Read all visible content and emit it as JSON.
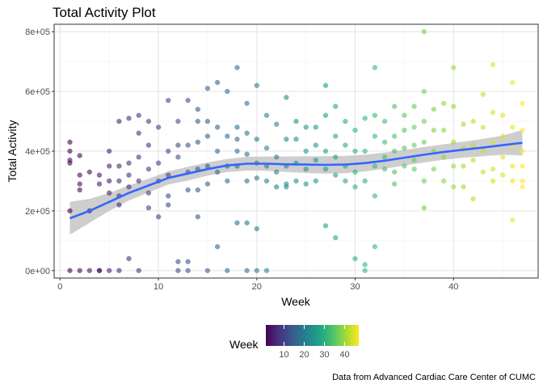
{
  "chart_data": {
    "type": "scatter",
    "title": "Total Activity Plot",
    "xlabel": "Week",
    "ylabel": "Total Activity",
    "caption": "Data from Advanced Cardiac Care Center of CUMC",
    "xlim": [
      -0.6,
      48.6
    ],
    "ylim": [
      -25000,
      825000
    ],
    "x_ticks": [
      0,
      10,
      20,
      30,
      40
    ],
    "y_ticks": [
      0,
      200000,
      400000,
      600000,
      800000
    ],
    "y_tick_labels": [
      "0e+00",
      "2e+05",
      "4e+05",
      "6e+05",
      "8e+05"
    ],
    "grid": true,
    "legend": {
      "title": "Week",
      "position": "bottom",
      "ticks": [
        10,
        20,
        30,
        40
      ],
      "range": [
        1,
        47
      ],
      "colormap": "viridis"
    },
    "colors": {
      "smooth_line": "#3366ff",
      "ribbon": "#bdbdbd",
      "grid_major": "#e5e5e5",
      "grid_minor": "#f3f3f3",
      "panel_border": "#333333",
      "viridis": [
        "#440154",
        "#482878",
        "#3e4989",
        "#31688e",
        "#26828e",
        "#1f9e89",
        "#35b779",
        "#6ece58",
        "#b5de2b",
        "#fde725"
      ]
    },
    "smooth": {
      "x": [
        1,
        3,
        5,
        7,
        9,
        11,
        13,
        15,
        17,
        19,
        21,
        23,
        25,
        27,
        29,
        31,
        33,
        35,
        37,
        39,
        41,
        43,
        45,
        47
      ],
      "y": [
        175000,
        200000,
        230000,
        260000,
        285000,
        310000,
        325000,
        340000,
        352000,
        358000,
        358000,
        356000,
        355000,
        354000,
        355000,
        360000,
        368000,
        378000,
        388000,
        397000,
        405000,
        412000,
        420000,
        428000
      ],
      "lower": [
        120000,
        160000,
        200000,
        235000,
        262000,
        288000,
        302000,
        318000,
        330000,
        335000,
        334000,
        330000,
        327000,
        325000,
        326000,
        332000,
        341000,
        352000,
        362000,
        371000,
        378000,
        383000,
        388000,
        385000
      ],
      "upper": [
        230000,
        240000,
        260000,
        285000,
        308000,
        332000,
        348000,
        362000,
        374000,
        381000,
        382000,
        382000,
        383000,
        383000,
        384000,
        388000,
        395000,
        404000,
        414000,
        423000,
        432000,
        441000,
        452000,
        471000
      ]
    },
    "points": [
      [
        1,
        430000
      ],
      [
        1,
        400000
      ],
      [
        1,
        370000
      ],
      [
        1,
        360000
      ],
      [
        1,
        200000
      ],
      [
        1,
        0
      ],
      [
        2,
        385000
      ],
      [
        2,
        320000
      ],
      [
        2,
        290000
      ],
      [
        2,
        270000
      ],
      [
        2,
        0
      ],
      [
        3,
        330000
      ],
      [
        3,
        200000
      ],
      [
        3,
        0
      ],
      [
        4,
        320000
      ],
      [
        4,
        290000
      ],
      [
        4,
        0
      ],
      [
        4,
        0
      ],
      [
        5,
        400000
      ],
      [
        5,
        350000
      ],
      [
        5,
        300000
      ],
      [
        5,
        260000
      ],
      [
        5,
        0
      ],
      [
        6,
        500000
      ],
      [
        6,
        350000
      ],
      [
        6,
        300000
      ],
      [
        6,
        250000
      ],
      [
        6,
        220000
      ],
      [
        6,
        0
      ],
      [
        7,
        510000
      ],
      [
        7,
        360000
      ],
      [
        7,
        320000
      ],
      [
        7,
        280000
      ],
      [
        7,
        40000
      ],
      [
        8,
        520000
      ],
      [
        8,
        460000
      ],
      [
        8,
        380000
      ],
      [
        8,
        300000
      ],
      [
        8,
        0
      ],
      [
        9,
        500000
      ],
      [
        9,
        420000
      ],
      [
        9,
        340000
      ],
      [
        9,
        260000
      ],
      [
        9,
        210000
      ],
      [
        10,
        480000
      ],
      [
        10,
        360000
      ],
      [
        10,
        300000
      ],
      [
        10,
        180000
      ],
      [
        11,
        570000
      ],
      [
        11,
        400000
      ],
      [
        11,
        320000
      ],
      [
        11,
        250000
      ],
      [
        11,
        220000
      ],
      [
        12,
        500000
      ],
      [
        12,
        420000
      ],
      [
        12,
        380000
      ],
      [
        12,
        30000
      ],
      [
        12,
        0
      ],
      [
        13,
        570000
      ],
      [
        13,
        420000
      ],
      [
        13,
        330000
      ],
      [
        13,
        270000
      ],
      [
        13,
        30000
      ],
      [
        13,
        0
      ],
      [
        14,
        540000
      ],
      [
        14,
        500000
      ],
      [
        14,
        430000
      ],
      [
        14,
        340000
      ],
      [
        14,
        270000
      ],
      [
        14,
        180000
      ],
      [
        15,
        610000
      ],
      [
        15,
        500000
      ],
      [
        15,
        450000
      ],
      [
        15,
        350000
      ],
      [
        15,
        290000
      ],
      [
        15,
        0
      ],
      [
        16,
        630000
      ],
      [
        16,
        480000
      ],
      [
        16,
        400000
      ],
      [
        16,
        330000
      ],
      [
        16,
        80000
      ],
      [
        17,
        600000
      ],
      [
        17,
        450000
      ],
      [
        17,
        350000
      ],
      [
        17,
        300000
      ],
      [
        17,
        0
      ],
      [
        18,
        680000
      ],
      [
        18,
        480000
      ],
      [
        18,
        440000
      ],
      [
        18,
        400000
      ],
      [
        18,
        350000
      ],
      [
        18,
        160000
      ],
      [
        19,
        560000
      ],
      [
        19,
        460000
      ],
      [
        19,
        390000
      ],
      [
        19,
        300000
      ],
      [
        19,
        160000
      ],
      [
        19,
        0
      ],
      [
        20,
        620000
      ],
      [
        20,
        440000
      ],
      [
        20,
        360000
      ],
      [
        20,
        310000
      ],
      [
        20,
        140000
      ],
      [
        20,
        0
      ],
      [
        21,
        520000
      ],
      [
        21,
        410000
      ],
      [
        21,
        350000
      ],
      [
        21,
        300000
      ],
      [
        21,
        0
      ],
      [
        22,
        490000
      ],
      [
        22,
        380000
      ],
      [
        22,
        330000
      ],
      [
        22,
        280000
      ],
      [
        23,
        580000
      ],
      [
        23,
        440000
      ],
      [
        23,
        350000
      ],
      [
        23,
        290000
      ],
      [
        23,
        280000
      ],
      [
        24,
        500000
      ],
      [
        24,
        440000
      ],
      [
        24,
        360000
      ],
      [
        24,
        300000
      ],
      [
        25,
        480000
      ],
      [
        25,
        400000
      ],
      [
        25,
        340000
      ],
      [
        25,
        290000
      ],
      [
        26,
        480000
      ],
      [
        26,
        420000
      ],
      [
        26,
        370000
      ],
      [
        26,
        300000
      ],
      [
        27,
        620000
      ],
      [
        27,
        520000
      ],
      [
        27,
        400000
      ],
      [
        27,
        340000
      ],
      [
        27,
        150000
      ],
      [
        28,
        550000
      ],
      [
        28,
        450000
      ],
      [
        28,
        380000
      ],
      [
        28,
        320000
      ],
      [
        28,
        110000
      ],
      [
        29,
        500000
      ],
      [
        29,
        420000
      ],
      [
        29,
        350000
      ],
      [
        29,
        300000
      ],
      [
        30,
        470000
      ],
      [
        30,
        400000
      ],
      [
        30,
        330000
      ],
      [
        30,
        280000
      ],
      [
        30,
        40000
      ],
      [
        31,
        510000
      ],
      [
        31,
        400000
      ],
      [
        31,
        300000
      ],
      [
        31,
        20000
      ],
      [
        31,
        0
      ],
      [
        32,
        680000
      ],
      [
        32,
        520000
      ],
      [
        32,
        450000
      ],
      [
        32,
        350000
      ],
      [
        32,
        250000
      ],
      [
        32,
        80000
      ],
      [
        33,
        500000
      ],
      [
        33,
        430000
      ],
      [
        33,
        380000
      ],
      [
        33,
        340000
      ],
      [
        34,
        550000
      ],
      [
        34,
        450000
      ],
      [
        34,
        400000
      ],
      [
        34,
        330000
      ],
      [
        34,
        290000
      ],
      [
        35,
        520000
      ],
      [
        35,
        470000
      ],
      [
        35,
        410000
      ],
      [
        35,
        350000
      ],
      [
        36,
        550000
      ],
      [
        36,
        480000
      ],
      [
        36,
        420000
      ],
      [
        36,
        370000
      ],
      [
        36,
        340000
      ],
      [
        37,
        800000
      ],
      [
        37,
        600000
      ],
      [
        37,
        500000
      ],
      [
        37,
        430000
      ],
      [
        37,
        300000
      ],
      [
        37,
        210000
      ],
      [
        38,
        540000
      ],
      [
        38,
        470000
      ],
      [
        38,
        400000
      ],
      [
        38,
        340000
      ],
      [
        39,
        560000
      ],
      [
        39,
        470000
      ],
      [
        39,
        380000
      ],
      [
        39,
        300000
      ],
      [
        40,
        680000
      ],
      [
        40,
        550000
      ],
      [
        40,
        430000
      ],
      [
        40,
        350000
      ],
      [
        40,
        280000
      ],
      [
        41,
        490000
      ],
      [
        41,
        410000
      ],
      [
        41,
        350000
      ],
      [
        41,
        280000
      ],
      [
        42,
        500000
      ],
      [
        42,
        420000
      ],
      [
        42,
        370000
      ],
      [
        42,
        240000
      ],
      [
        43,
        590000
      ],
      [
        43,
        480000
      ],
      [
        43,
        400000
      ],
      [
        43,
        330000
      ],
      [
        44,
        690000
      ],
      [
        44,
        530000
      ],
      [
        44,
        430000
      ],
      [
        44,
        340000
      ],
      [
        44,
        300000
      ],
      [
        45,
        520000
      ],
      [
        45,
        450000
      ],
      [
        45,
        380000
      ],
      [
        45,
        320000
      ],
      [
        46,
        630000
      ],
      [
        46,
        480000
      ],
      [
        46,
        420000
      ],
      [
        46,
        350000
      ],
      [
        46,
        300000
      ],
      [
        46,
        170000
      ],
      [
        47,
        560000
      ],
      [
        47,
        470000
      ],
      [
        47,
        400000
      ],
      [
        47,
        350000
      ],
      [
        47,
        300000
      ],
      [
        47,
        280000
      ]
    ]
  }
}
